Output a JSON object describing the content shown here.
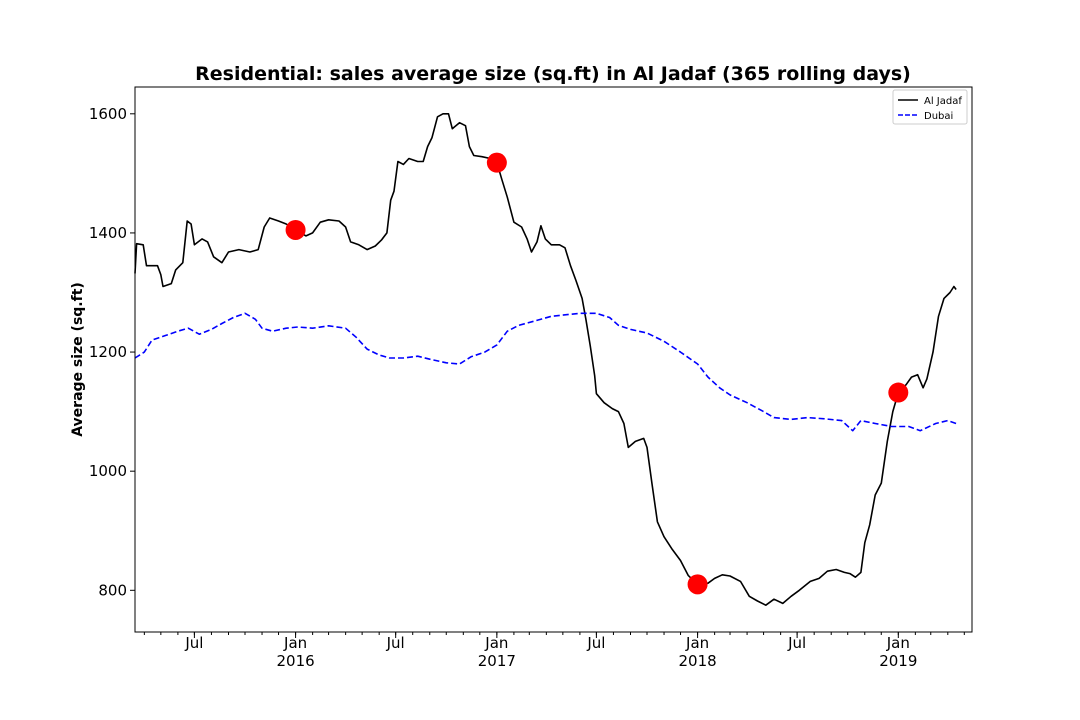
{
  "chart_data": {
    "type": "line",
    "title": "Residential: sales average size (sq.ft) in Al Jadaf (365 rolling days)",
    "xlabel": "",
    "ylabel": "Average size (sq.ft)",
    "xlim": [
      "2015-03-15",
      "2019-05-15"
    ],
    "ylim": [
      730,
      1645
    ],
    "yticks": [
      800,
      1000,
      1200,
      1400,
      1600
    ],
    "xticks": [
      {
        "date": "2015-07-01",
        "label": "Jul",
        "year": ""
      },
      {
        "date": "2016-01-01",
        "label": "Jan",
        "year": "2016"
      },
      {
        "date": "2016-07-01",
        "label": "Jul",
        "year": ""
      },
      {
        "date": "2017-01-01",
        "label": "Jan",
        "year": "2017"
      },
      {
        "date": "2017-07-01",
        "label": "Jul",
        "year": ""
      },
      {
        "date": "2018-01-01",
        "label": "Jan",
        "year": "2018"
      },
      {
        "date": "2018-07-01",
        "label": "Jul",
        "year": ""
      },
      {
        "date": "2019-01-01",
        "label": "Jan",
        "year": "2019"
      }
    ],
    "grid": false,
    "legend_position": "top-right",
    "series": [
      {
        "name": "Al Jadaf",
        "color": "#000000",
        "style": "solid",
        "points": [
          [
            "2015-03-15",
            1332
          ],
          [
            "2015-03-18",
            1382
          ],
          [
            "2015-03-30",
            1380
          ],
          [
            "2015-04-05",
            1345
          ],
          [
            "2015-04-25",
            1345
          ],
          [
            "2015-05-01",
            1330
          ],
          [
            "2015-05-05",
            1310
          ],
          [
            "2015-05-20",
            1315
          ],
          [
            "2015-05-28",
            1338
          ],
          [
            "2015-06-10",
            1350
          ],
          [
            "2015-06-18",
            1420
          ],
          [
            "2015-06-25",
            1415
          ],
          [
            "2015-07-01",
            1380
          ],
          [
            "2015-07-15",
            1390
          ],
          [
            "2015-07-25",
            1385
          ],
          [
            "2015-08-05",
            1360
          ],
          [
            "2015-08-20",
            1350
          ],
          [
            "2015-09-01",
            1368
          ],
          [
            "2015-09-20",
            1372
          ],
          [
            "2015-10-10",
            1368
          ],
          [
            "2015-10-25",
            1372
          ],
          [
            "2015-11-05",
            1410
          ],
          [
            "2015-11-15",
            1425
          ],
          [
            "2015-12-01",
            1420
          ],
          [
            "2015-12-15",
            1415
          ],
          [
            "2016-01-01",
            1405
          ],
          [
            "2016-01-20",
            1395
          ],
          [
            "2016-02-01",
            1400
          ],
          [
            "2016-02-15",
            1418
          ],
          [
            "2016-03-01",
            1422
          ],
          [
            "2016-03-20",
            1420
          ],
          [
            "2016-04-01",
            1410
          ],
          [
            "2016-04-10",
            1385
          ],
          [
            "2016-04-25",
            1380
          ],
          [
            "2016-05-10",
            1372
          ],
          [
            "2016-05-25",
            1378
          ],
          [
            "2016-06-05",
            1388
          ],
          [
            "2016-06-15",
            1400
          ],
          [
            "2016-06-22",
            1455
          ],
          [
            "2016-06-28",
            1470
          ],
          [
            "2016-07-05",
            1520
          ],
          [
            "2016-07-15",
            1515
          ],
          [
            "2016-07-25",
            1525
          ],
          [
            "2016-08-10",
            1520
          ],
          [
            "2016-08-20",
            1520
          ],
          [
            "2016-08-28",
            1545
          ],
          [
            "2016-09-05",
            1560
          ],
          [
            "2016-09-15",
            1595
          ],
          [
            "2016-09-25",
            1600
          ],
          [
            "2016-10-05",
            1600
          ],
          [
            "2016-10-12",
            1575
          ],
          [
            "2016-10-25",
            1585
          ],
          [
            "2016-11-05",
            1580
          ],
          [
            "2016-11-12",
            1545
          ],
          [
            "2016-11-20",
            1530
          ],
          [
            "2016-12-05",
            1528
          ],
          [
            "2016-12-20",
            1525
          ],
          [
            "2017-01-01",
            1518
          ],
          [
            "2017-01-10",
            1490
          ],
          [
            "2017-01-20",
            1460
          ],
          [
            "2017-02-01",
            1418
          ],
          [
            "2017-02-15",
            1410
          ],
          [
            "2017-02-25",
            1390
          ],
          [
            "2017-03-05",
            1368
          ],
          [
            "2017-03-15",
            1385
          ],
          [
            "2017-03-22",
            1412
          ],
          [
            "2017-03-30",
            1390
          ],
          [
            "2017-04-10",
            1380
          ],
          [
            "2017-04-25",
            1380
          ],
          [
            "2017-05-05",
            1375
          ],
          [
            "2017-05-15",
            1345
          ],
          [
            "2017-05-25",
            1320
          ],
          [
            "2017-06-05",
            1290
          ],
          [
            "2017-06-12",
            1255
          ],
          [
            "2017-06-20",
            1210
          ],
          [
            "2017-06-28",
            1160
          ],
          [
            "2017-07-01",
            1130
          ],
          [
            "2017-07-15",
            1115
          ],
          [
            "2017-07-30",
            1105
          ],
          [
            "2017-08-10",
            1100
          ],
          [
            "2017-08-20",
            1080
          ],
          [
            "2017-08-28",
            1040
          ],
          [
            "2017-09-10",
            1050
          ],
          [
            "2017-09-25",
            1055
          ],
          [
            "2017-10-01",
            1040
          ],
          [
            "2017-10-10",
            980
          ],
          [
            "2017-10-20",
            915
          ],
          [
            "2017-11-01",
            890
          ],
          [
            "2017-11-15",
            870
          ],
          [
            "2017-12-01",
            850
          ],
          [
            "2017-12-15",
            825
          ],
          [
            "2018-01-01",
            810
          ],
          [
            "2018-01-20",
            812
          ],
          [
            "2018-02-01",
            820
          ],
          [
            "2018-02-15",
            826
          ],
          [
            "2018-03-01",
            824
          ],
          [
            "2018-03-20",
            815
          ],
          [
            "2018-04-05",
            790
          ],
          [
            "2018-04-20",
            782
          ],
          [
            "2018-05-05",
            775
          ],
          [
            "2018-05-20",
            785
          ],
          [
            "2018-06-05",
            778
          ],
          [
            "2018-06-20",
            790
          ],
          [
            "2018-07-05",
            800
          ],
          [
            "2018-07-25",
            815
          ],
          [
            "2018-08-10",
            820
          ],
          [
            "2018-08-25",
            832
          ],
          [
            "2018-09-10",
            835
          ],
          [
            "2018-09-25",
            830
          ],
          [
            "2018-10-05",
            828
          ],
          [
            "2018-10-15",
            822
          ],
          [
            "2018-10-25",
            830
          ],
          [
            "2018-11-01",
            880
          ],
          [
            "2018-11-10",
            910
          ],
          [
            "2018-11-20",
            960
          ],
          [
            "2018-12-01",
            980
          ],
          [
            "2018-12-12",
            1050
          ],
          [
            "2018-12-22",
            1100
          ],
          [
            "2019-01-01",
            1132
          ],
          [
            "2019-01-15",
            1145
          ],
          [
            "2019-01-25",
            1158
          ],
          [
            "2019-02-05",
            1162
          ],
          [
            "2019-02-15",
            1140
          ],
          [
            "2019-02-22",
            1155
          ],
          [
            "2019-03-05",
            1200
          ],
          [
            "2019-03-15",
            1260
          ],
          [
            "2019-03-25",
            1290
          ],
          [
            "2019-04-05",
            1300
          ],
          [
            "2019-04-12",
            1310
          ],
          [
            "2019-04-16",
            1305
          ]
        ]
      },
      {
        "name": "Dubai",
        "color": "#0000ff",
        "style": "dashed",
        "points": [
          [
            "2015-03-15",
            1190
          ],
          [
            "2015-04-01",
            1200
          ],
          [
            "2015-04-15",
            1220
          ],
          [
            "2015-05-10",
            1228
          ],
          [
            "2015-06-01",
            1235
          ],
          [
            "2015-06-20",
            1240
          ],
          [
            "2015-07-10",
            1230
          ],
          [
            "2015-08-01",
            1238
          ],
          [
            "2015-08-20",
            1248
          ],
          [
            "2015-09-10",
            1258
          ],
          [
            "2015-10-01",
            1265
          ],
          [
            "2015-10-20",
            1255
          ],
          [
            "2015-11-01",
            1240
          ],
          [
            "2015-11-20",
            1235
          ],
          [
            "2015-12-15",
            1240
          ],
          [
            "2016-01-05",
            1242
          ],
          [
            "2016-02-01",
            1240
          ],
          [
            "2016-03-01",
            1244
          ],
          [
            "2016-04-01",
            1240
          ],
          [
            "2016-04-20",
            1225
          ],
          [
            "2016-05-10",
            1205
          ],
          [
            "2016-06-01",
            1195
          ],
          [
            "2016-06-20",
            1190
          ],
          [
            "2016-07-15",
            1190
          ],
          [
            "2016-08-10",
            1193
          ],
          [
            "2016-09-01",
            1188
          ],
          [
            "2016-10-01",
            1182
          ],
          [
            "2016-10-25",
            1180
          ],
          [
            "2016-11-15",
            1192
          ],
          [
            "2016-12-10",
            1200
          ],
          [
            "2017-01-01",
            1212
          ],
          [
            "2017-01-20",
            1235
          ],
          [
            "2017-02-10",
            1245
          ],
          [
            "2017-03-10",
            1252
          ],
          [
            "2017-04-10",
            1260
          ],
          [
            "2017-05-01",
            1262
          ],
          [
            "2017-06-01",
            1265
          ],
          [
            "2017-07-01",
            1265
          ],
          [
            "2017-07-25",
            1258
          ],
          [
            "2017-08-10",
            1245
          ],
          [
            "2017-09-01",
            1238
          ],
          [
            "2017-10-01",
            1232
          ],
          [
            "2017-11-01",
            1218
          ],
          [
            "2017-12-01",
            1200
          ],
          [
            "2018-01-01",
            1180
          ],
          [
            "2018-01-20",
            1158
          ],
          [
            "2018-02-10",
            1140
          ],
          [
            "2018-03-01",
            1128
          ],
          [
            "2018-04-01",
            1115
          ],
          [
            "2018-05-01",
            1100
          ],
          [
            "2018-05-20",
            1090
          ],
          [
            "2018-06-20",
            1087
          ],
          [
            "2018-07-20",
            1090
          ],
          [
            "2018-08-20",
            1088
          ],
          [
            "2018-09-20",
            1085
          ],
          [
            "2018-10-10",
            1068
          ],
          [
            "2018-10-25",
            1085
          ],
          [
            "2018-11-20",
            1080
          ],
          [
            "2018-12-20",
            1075
          ],
          [
            "2019-01-20",
            1075
          ],
          [
            "2019-02-10",
            1068
          ],
          [
            "2019-03-10",
            1080
          ],
          [
            "2019-04-01",
            1085
          ],
          [
            "2019-04-16",
            1080
          ]
        ]
      }
    ],
    "markers": {
      "color": "#ff0000",
      "points": [
        [
          "2016-01-01",
          1405
        ],
        [
          "2017-01-01",
          1518
        ],
        [
          "2018-01-01",
          810
        ],
        [
          "2019-01-01",
          1132
        ]
      ]
    }
  }
}
